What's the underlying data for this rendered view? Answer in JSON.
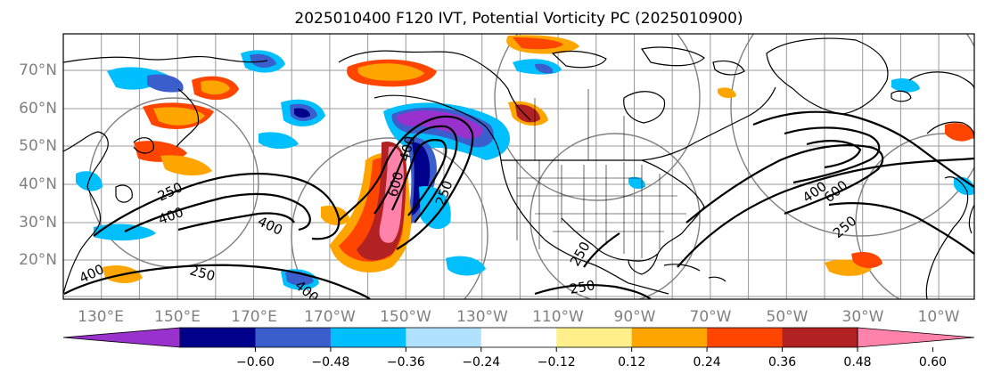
{
  "map": {
    "title": "2025010400 F120 IVT, Potential Vorticity PC (2025010900)",
    "lat_labels": [
      "70°N",
      "60°N",
      "50°N",
      "40°N",
      "30°N",
      "20°N"
    ],
    "lon_labels": [
      "130°E",
      "150°E",
      "170°E",
      "170°W",
      "150°W",
      "130°W",
      "110°W",
      "90°W",
      "70°W",
      "50°W",
      "30°W",
      "10°W"
    ],
    "contour_labels": [
      "250",
      "400",
      "400",
      "400",
      "600",
      "400",
      "250",
      "400",
      "250",
      "250",
      "600",
      "400",
      "250",
      "250",
      "250"
    ]
  },
  "colorbar": {
    "ticks": [
      "−0.60",
      "−0.48",
      "−0.36",
      "−0.24",
      "−0.12",
      "0.12",
      "0.24",
      "0.36",
      "0.48",
      "0.60"
    ],
    "colors": [
      "#9932cc",
      "#00008b",
      "#3a5fcd",
      "#00bfff",
      "#b0e2ff",
      "#ffffff",
      "#fff08c",
      "#ffa500",
      "#ff4500",
      "#b22222",
      "#ff82ab"
    ],
    "extend": "both"
  },
  "colors": {
    "grid": "#999999",
    "coast": "#000000",
    "contour": "#000000",
    "range_rings": "#808080"
  }
}
